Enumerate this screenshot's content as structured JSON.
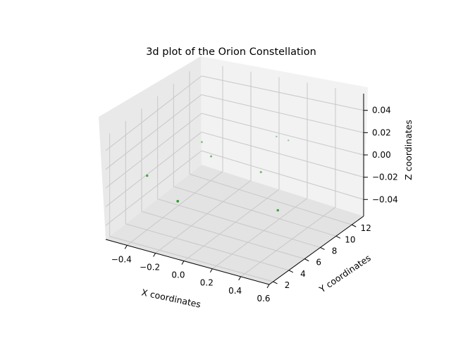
{
  "chart_data": {
    "type": "scatter",
    "projection": "3d",
    "title": "3d plot of the Orion Constellation",
    "xlabel": "X coordinates",
    "ylabel": "Y coordinates",
    "zlabel": "Z coordinates",
    "xlim": [
      -0.55,
      0.6
    ],
    "ylim": [
      1.5,
      13.5
    ],
    "zlim": [
      -0.055,
      0.055
    ],
    "xticks": [
      "−0.4",
      "−0.2",
      "0.0",
      "0.2",
      "0.4",
      "0.6"
    ],
    "yticks": [
      "2",
      "4",
      "6",
      "8",
      "10",
      "12"
    ],
    "zticks": [
      "−0.04",
      "−0.02",
      "0.00",
      "0.02",
      "0.04"
    ],
    "grid": true,
    "marker_color": "#2ca02c",
    "points": [
      {
        "x": -0.41,
        "y": 4.2,
        "z": 0
      },
      {
        "x": -0.35,
        "y": 10.0,
        "z": 0
      },
      {
        "x": -0.2,
        "y": 8.5,
        "z": 0
      },
      {
        "x": -0.06,
        "y": 1.8,
        "z": 0
      },
      {
        "x": 0.01,
        "y": 13.0,
        "z": 0
      },
      {
        "x": 0.1,
        "y": 12.9,
        "z": 0
      },
      {
        "x": 0.18,
        "y": 8.0,
        "z": 0
      },
      {
        "x": 0.55,
        "y": 3.5,
        "z": 0
      }
    ]
  }
}
